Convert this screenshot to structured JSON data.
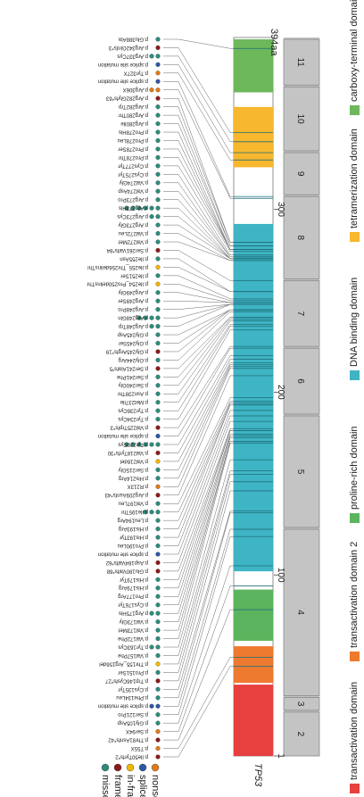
{
  "protein": {
    "gene": "TP53",
    "length_label": "394aa",
    "length": 394,
    "axis_ticks": [
      1,
      100,
      200,
      300
    ]
  },
  "mutation_legend": [
    {
      "label": "missense",
      "color": "#2e8b7a"
    },
    {
      "label": "frame-shift",
      "color": "#8b1a1a"
    },
    {
      "label": "in-frame",
      "color": "#f2b705"
    },
    {
      "label": "splice site",
      "color": "#2f56a3"
    },
    {
      "label": "nonsense",
      "color": "#e07b1a"
    }
  ],
  "domain_legend": [
    {
      "label": "transactivation domain",
      "color": "#e8403f"
    },
    {
      "label": "transactivation domain 2",
      "color": "#ee7a30"
    },
    {
      "label": "proline-rich domain",
      "color": "#5db45e"
    },
    {
      "label": "DNA binding domain",
      "color": "#3fb4c4"
    },
    {
      "label": "tetramerization domain",
      "color": "#f7b72e"
    },
    {
      "label": "carboxy-terminal domain",
      "color": "#6cb85a"
    }
  ],
  "domains": [
    {
      "name": "transactivation domain",
      "start": 1,
      "end": 40,
      "color": "#e8403f"
    },
    {
      "name": "transactivation domain 2",
      "start": 41,
      "end": 61,
      "color": "#ee7a30"
    },
    {
      "name": "proline-rich domain",
      "start": 64,
      "end": 92,
      "color": "#5db45e"
    },
    {
      "name": "DNA binding domain",
      "start": 102,
      "end": 292,
      "color": "#3fb4c4"
    },
    {
      "name": "tetramerization domain",
      "start": 323,
      "end": 356,
      "color": "#f7b72e"
    },
    {
      "name": "carboxy-terminal domain",
      "start": 364,
      "end": 393,
      "color": "#6cb85a"
    }
  ],
  "exons": [
    {
      "label": "2",
      "start": 1,
      "end": 25
    },
    {
      "label": "3",
      "start": 26,
      "end": 33
    },
    {
      "label": "4",
      "start": 34,
      "end": 125
    },
    {
      "label": "5",
      "start": 126,
      "end": 187
    },
    {
      "label": "6",
      "start": 188,
      "end": 224
    },
    {
      "label": "7",
      "start": 225,
      "end": 261
    },
    {
      "label": "8",
      "start": 262,
      "end": 307
    },
    {
      "label": "9",
      "start": 308,
      "end": 331
    },
    {
      "label": "10",
      "start": 332,
      "end": 367
    },
    {
      "label": "11",
      "start": 368,
      "end": 393
    }
  ],
  "mutations": [
    {
      "label": "p.Ile50Tyrfs*2",
      "pos": 50,
      "type": "frame-shift",
      "count": 1
    },
    {
      "label": "p.T55X",
      "pos": 55,
      "type": "nonsense",
      "count": 1
    },
    {
      "label": "p.Thr81Asnfs*42",
      "pos": 81,
      "type": "frame-shift",
      "count": 1
    },
    {
      "label": "p.Ser94X",
      "pos": 94,
      "type": "nonsense",
      "count": 1
    },
    {
      "label": "p.Gly105Asp",
      "pos": 105,
      "type": "missense",
      "count": 1
    },
    {
      "label": "p.Ser121Pro",
      "pos": 121,
      "type": "missense",
      "count": 1
    },
    {
      "label": "p.splice site mutation",
      "pos": 125,
      "type": "splice site",
      "count": 2
    },
    {
      "label": "p.Phe134Leu",
      "pos": 134,
      "type": "missense",
      "count": 1
    },
    {
      "label": "p.Cys135Tyr",
      "pos": 135,
      "type": "missense",
      "count": 1
    },
    {
      "label": "p.Trp146Cysfs*27",
      "pos": 146,
      "type": "frame-shift",
      "count": 1
    },
    {
      "label": "p.Pro151Ser",
      "pos": 151,
      "type": "missense",
      "count": 1
    },
    {
      "label": "p.Thr155_Arg156del",
      "pos": 155,
      "type": "in-frame",
      "count": 1
    },
    {
      "label": "p.Val157Phe",
      "pos": 157,
      "type": "missense",
      "count": 1
    },
    {
      "label": "p.Tyr163Cys",
      "pos": 163,
      "type": "missense",
      "count": 2
    },
    {
      "label": "p.Val172Phe",
      "pos": 172,
      "type": "missense",
      "count": 1
    },
    {
      "label": "p.Val173Met",
      "pos": 173,
      "type": "missense",
      "count": 1
    },
    {
      "label": "p.Val173Gly",
      "pos": 173,
      "type": "missense",
      "count": 1
    },
    {
      "label": "p.Arg175His",
      "pos": 175,
      "type": "missense",
      "count": 2
    },
    {
      "label": "p.Cys176Tyr",
      "pos": 176,
      "type": "missense",
      "count": 1
    },
    {
      "label": "p.Pro177Arg",
      "pos": 177,
      "type": "missense",
      "count": 1
    },
    {
      "label": "p.His179Arg",
      "pos": 179,
      "type": "missense",
      "count": 1
    },
    {
      "label": "p.His179Tyr",
      "pos": 179,
      "type": "missense",
      "count": 1
    },
    {
      "label": "p.Glu180Valfs*68",
      "pos": 180,
      "type": "frame-shift",
      "count": 1
    },
    {
      "label": "p.Asp184Valfs*62",
      "pos": 184,
      "type": "frame-shift",
      "count": 1
    },
    {
      "label": "p.splice site mutation",
      "pos": 187,
      "type": "splice site",
      "count": 1
    },
    {
      "label": "p.Pro190Leu",
      "pos": 190,
      "type": "missense",
      "count": 1
    },
    {
      "label": "p.His193Tyr",
      "pos": 193,
      "type": "missense",
      "count": 1
    },
    {
      "label": "p.His193Arg",
      "pos": 193,
      "type": "missense",
      "count": 1
    },
    {
      "label": "p.Leu194Arg",
      "pos": 194,
      "type": "missense",
      "count": 1
    },
    {
      "label": "p.Ile195Thr",
      "pos": 195,
      "type": "missense",
      "count": 3
    },
    {
      "label": "p.Val197Leu",
      "pos": 197,
      "type": "missense",
      "count": 1
    },
    {
      "label": "p.Arg209Asnfs*43",
      "pos": 209,
      "type": "frame-shift",
      "count": 1
    },
    {
      "label": "p.R213X",
      "pos": 213,
      "type": "nonsense",
      "count": 1
    },
    {
      "label": "p.His214Arg",
      "pos": 214,
      "type": "missense",
      "count": 1
    },
    {
      "label": "p.Ser215Gly",
      "pos": 215,
      "type": "missense",
      "count": 1
    },
    {
      "label": "p.Val216del",
      "pos": 216,
      "type": "in-frame",
      "count": 1
    },
    {
      "label": "p.Val218Tyrfs*30",
      "pos": 218,
      "type": "frame-shift",
      "count": 1
    },
    {
      "label": "p.Tyr220Cys",
      "pos": 220,
      "type": "missense",
      "count": 6
    },
    {
      "label": "p.splice site mutation",
      "pos": 224,
      "type": "splice site",
      "count": 1
    },
    {
      "label": "p.Val225Trpfs*3",
      "pos": 225,
      "type": "frame-shift",
      "count": 1
    },
    {
      "label": "p.Tyr234Cys",
      "pos": 234,
      "type": "missense",
      "count": 1
    },
    {
      "label": "p.Tyr236Cys",
      "pos": 236,
      "type": "missense",
      "count": 1
    },
    {
      "label": "p.Met237Ile",
      "pos": 237,
      "type": "missense",
      "count": 1
    },
    {
      "label": "p.Asn239Thr",
      "pos": 239,
      "type": "missense",
      "count": 1
    },
    {
      "label": "p.Ser240Gly",
      "pos": 240,
      "type": "missense",
      "count": 1
    },
    {
      "label": "p.Ser241Phe",
      "pos": 241,
      "type": "missense",
      "count": 1
    },
    {
      "label": "p.Ser241Alafs*5",
      "pos": 241,
      "type": "frame-shift",
      "count": 1
    },
    {
      "label": "p.Gly244Arg",
      "pos": 244,
      "type": "missense",
      "count": 1
    },
    {
      "label": "p.Gly245Argfs*19",
      "pos": 245,
      "type": "frame-shift",
      "count": 1
    },
    {
      "label": "p.Gly245Ser",
      "pos": 245,
      "type": "missense",
      "count": 1
    },
    {
      "label": "p.Gly245Asp",
      "pos": 245,
      "type": "missense",
      "count": 1
    },
    {
      "label": "p.Arg248Trp",
      "pos": 248,
      "type": "missense",
      "count": 2
    },
    {
      "label": "p.Arg248Gln",
      "pos": 248,
      "type": "missense",
      "count": 4
    },
    {
      "label": "p.Arg248Pro",
      "pos": 248,
      "type": "missense",
      "count": 1
    },
    {
      "label": "p.Arg249Ser",
      "pos": 249,
      "type": "missense",
      "count": 1
    },
    {
      "label": "p.Arg249Gly",
      "pos": 249,
      "type": "missense",
      "count": 1
    },
    {
      "label": "p.Ile254_Pro250delinsThr",
      "pos": 250,
      "type": "in-frame",
      "count": 1
    },
    {
      "label": "p.Ile251Ser",
      "pos": 251,
      "type": "missense",
      "count": 1
    },
    {
      "label": "p.Ile255_Thr256delinsThr",
      "pos": 255,
      "type": "in-frame",
      "count": 1
    },
    {
      "label": "p.Ile255Asn",
      "pos": 255,
      "type": "missense",
      "count": 1
    },
    {
      "label": "p.Ser261Valfs*84",
      "pos": 261,
      "type": "frame-shift",
      "count": 1
    },
    {
      "label": "p.Val272Met",
      "pos": 272,
      "type": "missense",
      "count": 1
    },
    {
      "label": "p.Val272Leu",
      "pos": 272,
      "type": "missense",
      "count": 1
    },
    {
      "label": "p.Arg273Gly",
      "pos": 273,
      "type": "missense",
      "count": 1
    },
    {
      "label": "p.Arg273Cys",
      "pos": 273,
      "type": "missense",
      "count": 2
    },
    {
      "label": "p.Arg273His",
      "pos": 273,
      "type": "missense",
      "count": 6
    },
    {
      "label": "p.Arg273Pro",
      "pos": 273,
      "type": "missense",
      "count": 1
    },
    {
      "label": "p.Val274Asp",
      "pos": 274,
      "type": "missense",
      "count": 1
    },
    {
      "label": "p.Val274Gly",
      "pos": 274,
      "type": "missense",
      "count": 1
    },
    {
      "label": "p.Cys275Tyr",
      "pos": 275,
      "type": "missense",
      "count": 1
    },
    {
      "label": "p.Cys277Tyr",
      "pos": 277,
      "type": "missense",
      "count": 1
    },
    {
      "label": "p.Pro278Thr",
      "pos": 278,
      "type": "missense",
      "count": 1
    },
    {
      "label": "p.Pro278Ser",
      "pos": 278,
      "type": "missense",
      "count": 1
    },
    {
      "label": "p.Pro278Leu",
      "pos": 278,
      "type": "missense",
      "count": 1
    },
    {
      "label": "p.Pro278His",
      "pos": 278,
      "type": "missense",
      "count": 1
    },
    {
      "label": "p.Arg280Ile",
      "pos": 280,
      "type": "missense",
      "count": 1
    },
    {
      "label": "p.Arg280Thr",
      "pos": 280,
      "type": "missense",
      "count": 1
    },
    {
      "label": "p.Arg282Trp",
      "pos": 282,
      "type": "missense",
      "count": 1
    },
    {
      "label": "p.Arg282Glyfs*63",
      "pos": 282,
      "type": "frame-shift",
      "count": 1
    },
    {
      "label": "p.Arg306X",
      "pos": 306,
      "type": "nonsense",
      "count": 2
    },
    {
      "label": "p.splice site mutation",
      "pos": 307,
      "type": "splice site",
      "count": 1
    },
    {
      "label": "p.splice site mutation",
      "pos": 331,
      "type": "splice site",
      "count": 1
    },
    {
      "label": "p.Tyr327X",
      "pos": 327,
      "type": "nonsense",
      "count": 1
    },
    {
      "label": "p.Arg337Cys",
      "pos": 337,
      "type": "missense",
      "count": 2
    },
    {
      "label": "p.Arg342Glnfs*3",
      "pos": 342,
      "type": "frame-shift",
      "count": 1
    },
    {
      "label": "p.Glu388Ala",
      "pos": 388,
      "type": "missense",
      "count": 1
    }
  ]
}
